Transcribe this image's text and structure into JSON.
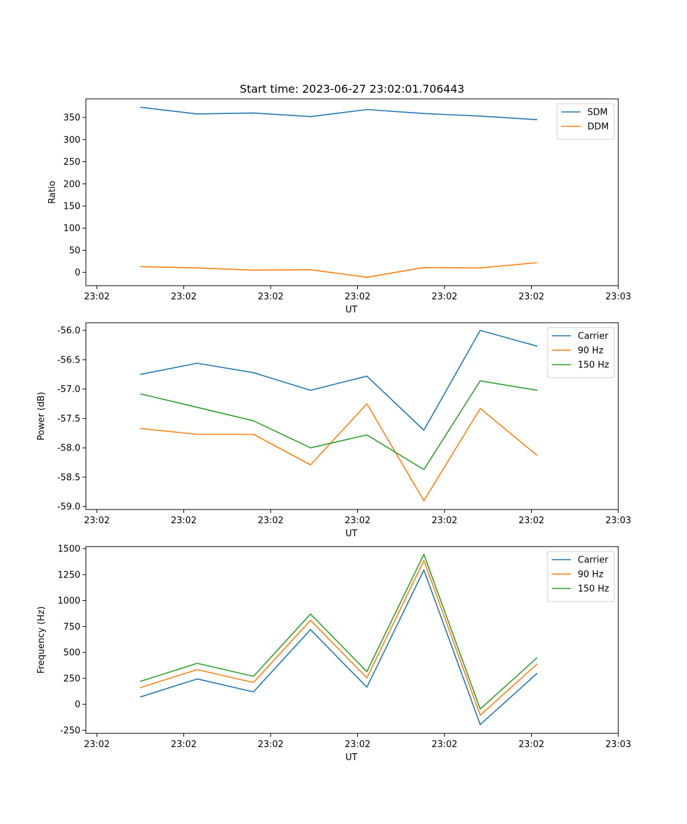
{
  "colors": {
    "blue": "#1f77b4",
    "orange": "#ff7f0e",
    "green": "#2ca02c"
  },
  "chart_data": [
    {
      "type": "line",
      "title": "Start time: 2023-06-27 23:02:01.706443",
      "xlabel": "UT",
      "ylabel": "Ratio",
      "x_tick_labels": [
        "23:02",
        "23:02",
        "23:02",
        "23:02",
        "23:02",
        "23:02",
        "23:03"
      ],
      "y_ticks": [
        0,
        50,
        100,
        150,
        200,
        250,
        300,
        350
      ],
      "ylim": [
        -30,
        392
      ],
      "grid": false,
      "legend": "top-right",
      "series": [
        {
          "name": "SDM",
          "color": "#1f77b4",
          "values": [
            373,
            358,
            360,
            352,
            368,
            359,
            353,
            345
          ]
        },
        {
          "name": "DDM",
          "color": "#ff7f0e",
          "values": [
            13,
            10,
            5,
            6,
            -11,
            11,
            10,
            22
          ]
        }
      ]
    },
    {
      "type": "line",
      "title": "",
      "xlabel": "UT",
      "ylabel": "Power (dB)",
      "x_tick_labels": [
        "23:02",
        "23:02",
        "23:02",
        "23:02",
        "23:02",
        "23:02",
        "23:03"
      ],
      "y_ticks": [
        -59.0,
        -58.5,
        -58.0,
        -57.5,
        -57.0,
        -56.5,
        -56.0
      ],
      "ylim": [
        -59.05,
        -55.87
      ],
      "grid": false,
      "legend": "top-right",
      "series": [
        {
          "name": "Carrier",
          "color": "#1f77b4",
          "values": [
            -56.75,
            -56.56,
            -56.72,
            -57.02,
            -56.78,
            -57.7,
            -56.0,
            -56.27
          ]
        },
        {
          "name": "90 Hz",
          "color": "#ff7f0e",
          "values": [
            -57.67,
            -57.77,
            -57.77,
            -58.29,
            -57.25,
            -58.9,
            -57.33,
            -58.13
          ]
        },
        {
          "name": "150 Hz",
          "color": "#2ca02c",
          "values": [
            -57.08,
            -57.31,
            -57.54,
            -58.0,
            -57.78,
            -58.37,
            -56.86,
            -57.02
          ]
        }
      ]
    },
    {
      "type": "line",
      "title": "",
      "xlabel": "UT",
      "ylabel": "Frequency (Hz)",
      "x_tick_labels": [
        "23:02",
        "23:02",
        "23:02",
        "23:02",
        "23:02",
        "23:02",
        "23:03"
      ],
      "y_ticks": [
        -250,
        0,
        250,
        500,
        750,
        1000,
        1250,
        1500
      ],
      "ylim": [
        -280,
        1520
      ],
      "grid": false,
      "legend": "top-right",
      "series": [
        {
          "name": "Carrier",
          "color": "#1f77b4",
          "values": [
            70,
            245,
            120,
            720,
            165,
            1295,
            -195,
            300
          ]
        },
        {
          "name": "90 Hz",
          "color": "#ff7f0e",
          "values": [
            160,
            335,
            210,
            810,
            255,
            1385,
            -105,
            390
          ]
        },
        {
          "name": "150 Hz",
          "color": "#2ca02c",
          "values": [
            220,
            395,
            270,
            870,
            315,
            1445,
            -45,
            450
          ]
        }
      ]
    }
  ]
}
